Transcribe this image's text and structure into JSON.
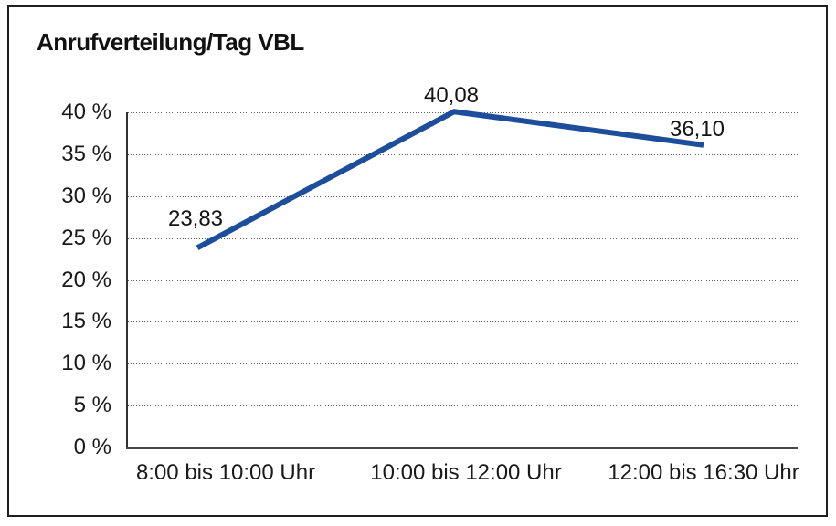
{
  "window": {
    "background": "#ffffff",
    "border_color": "#1f1f1f"
  },
  "chart_data": {
    "type": "line",
    "title": "Anrufverteilung/Tag VBL",
    "categories": [
      "8:00 bis 10:00 Uhr",
      "10:00 bis 12:00 Uhr",
      "12:00 bis 16:30 Uhr"
    ],
    "values": [
      23.83,
      40.08,
      36.1
    ],
    "data_labels": [
      "23,83",
      "40,08",
      "36,10"
    ],
    "xlabel": "",
    "ylabel": "",
    "ylim": [
      0,
      40
    ],
    "y_tick_step": 5,
    "y_tick_labels": [
      "0 %",
      "5 %",
      "10 %",
      "15 %",
      "20 %",
      "25 %",
      "30 %",
      "35 %",
      "40 %"
    ],
    "grid": "horizontal-dotted",
    "legend": "none",
    "line_color": "#1d4e9b",
    "text_color": "#1a1a1a"
  }
}
